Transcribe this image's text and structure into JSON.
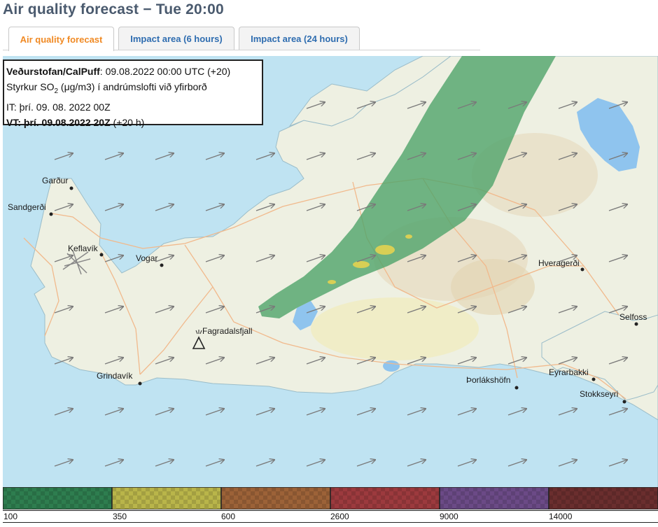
{
  "title": "Air quality forecast − Tue 20:00",
  "tabs": [
    {
      "label": "Air quality forecast",
      "active": true
    },
    {
      "label": "Impact area (6 hours)",
      "active": false
    },
    {
      "label": "Impact area (24 hours)",
      "active": false
    }
  ],
  "info": {
    "source_bold": "Veðurstofan/CalPuff",
    "source_rest": ": 09.08.2022 00:00 UTC (+20)",
    "line2_prefix": "Styrkur SO",
    "line2_sub": "2",
    "line2_rest": " (μg/m3) í andrúmslofti við yfirborð",
    "line3": "IT: þrí. 09. 08. 2022 00Z",
    "line4_bold": "VT: þrí. 09.08.2022 20Z",
    "line4_rest": " (+20 h)"
  },
  "places": [
    {
      "name": "Garður"
    },
    {
      "name": "Sandgerði"
    },
    {
      "name": "Keflavík"
    },
    {
      "name": "Vogar"
    },
    {
      "name": "Fagradalsfjall"
    },
    {
      "name": "Grindavík"
    },
    {
      "name": "Þorlákshöfn"
    },
    {
      "name": "Hveragerði"
    },
    {
      "name": "Selfoss"
    },
    {
      "name": "Eyrarbakki"
    },
    {
      "name": "Stokkseyri"
    }
  ],
  "legend": {
    "labels": [
      "100",
      "350",
      "600",
      "2600",
      "9000",
      "14000"
    ],
    "colors": [
      "#2e7d4f",
      "#b9b54a",
      "#9c6238",
      "#9c3a3e",
      "#6b4a86",
      "#6a2e2e"
    ]
  },
  "colors": {
    "plume_green": "#4fa46a",
    "plume_yellow": "#d8cf55",
    "sea": "#bfe3f2",
    "land": "#eef0e2",
    "title": "#4a5a6e",
    "tab_active": "#f08a24",
    "tab_inactive": "#2f6db0"
  }
}
